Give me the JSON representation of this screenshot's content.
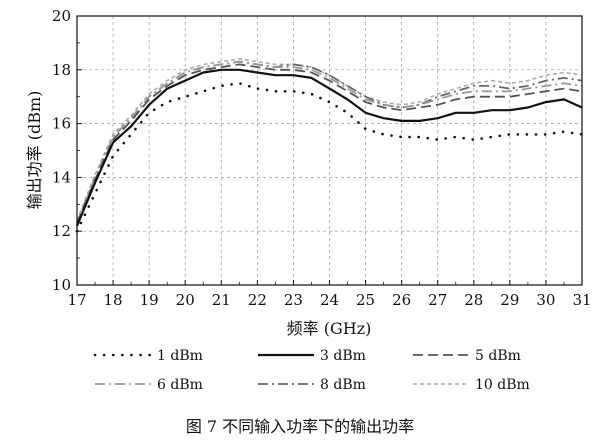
{
  "chart_data": {
    "type": "line",
    "xlabel": "频率 (GHz)",
    "ylabel": "输出功率 (dBm)",
    "xlim": [
      17,
      31
    ],
    "ylim": [
      10,
      20
    ],
    "x_ticks": [
      "17",
      "18",
      "19",
      "20",
      "21",
      "22",
      "23",
      "24",
      "25",
      "26",
      "27",
      "28",
      "29",
      "30",
      "31"
    ],
    "y_ticks": [
      "10",
      "12",
      "14",
      "16",
      "18",
      "20"
    ],
    "grid": true,
    "legend_position": "bottom",
    "caption": "图 7   不同输入功率下的输出功率",
    "x": [
      17,
      17.5,
      18,
      18.5,
      19,
      19.5,
      20,
      20.5,
      21,
      21.5,
      22,
      22.5,
      23,
      23.5,
      24,
      24.5,
      25,
      25.5,
      26,
      26.5,
      27,
      27.5,
      28,
      28.5,
      29,
      29.5,
      30,
      30.5,
      31
    ],
    "series": [
      {
        "name": "1 dBm",
        "style": "dotted",
        "color": "#111111",
        "values": [
          12.0,
          13.4,
          14.8,
          15.6,
          16.4,
          16.8,
          17.0,
          17.2,
          17.4,
          17.5,
          17.3,
          17.2,
          17.2,
          17.1,
          16.8,
          16.4,
          15.8,
          15.6,
          15.5,
          15.5,
          15.4,
          15.5,
          15.4,
          15.5,
          15.6,
          15.6,
          15.6,
          15.7,
          15.6
        ]
      },
      {
        "name": "3 dBm",
        "style": "solid",
        "color": "#111111",
        "values": [
          12.2,
          13.8,
          15.3,
          15.9,
          16.7,
          17.3,
          17.6,
          17.9,
          18.0,
          18.0,
          17.9,
          17.8,
          17.8,
          17.7,
          17.3,
          16.9,
          16.4,
          16.2,
          16.1,
          16.1,
          16.2,
          16.4,
          16.4,
          16.5,
          16.5,
          16.6,
          16.8,
          16.9,
          16.6
        ]
      },
      {
        "name": "5 dBm",
        "style": "dashed",
        "color": "#555555",
        "values": [
          12.3,
          13.9,
          15.4,
          16.1,
          16.9,
          17.4,
          17.8,
          18.0,
          18.1,
          18.2,
          18.1,
          18.0,
          18.0,
          17.9,
          17.6,
          17.2,
          16.8,
          16.6,
          16.5,
          16.6,
          16.7,
          16.9,
          17.0,
          17.0,
          17.0,
          17.1,
          17.2,
          17.3,
          17.2
        ]
      },
      {
        "name": "6 dBm",
        "style": "dashdot",
        "color": "#999999",
        "values": [
          12.3,
          14.0,
          15.5,
          16.2,
          17.0,
          17.5,
          17.9,
          18.1,
          18.2,
          18.3,
          18.2,
          18.1,
          18.1,
          18.0,
          17.7,
          17.3,
          16.9,
          16.7,
          16.6,
          16.7,
          16.9,
          17.1,
          17.2,
          17.2,
          17.2,
          17.3,
          17.4,
          17.5,
          17.4
        ]
      },
      {
        "name": "8 dBm",
        "style": "dashdot",
        "color": "#666666",
        "values": [
          12.3,
          14.0,
          15.5,
          16.2,
          17.0,
          17.5,
          17.9,
          18.1,
          18.2,
          18.3,
          18.2,
          18.1,
          18.2,
          18.1,
          17.8,
          17.4,
          17.0,
          16.7,
          16.6,
          16.7,
          17.0,
          17.2,
          17.4,
          17.4,
          17.3,
          17.4,
          17.6,
          17.7,
          17.6
        ]
      },
      {
        "name": "10 dBm",
        "style": "finedash",
        "color": "#aaaaaa",
        "values": [
          12.4,
          14.1,
          15.6,
          16.3,
          17.1,
          17.6,
          18.0,
          18.2,
          18.3,
          18.4,
          18.3,
          18.2,
          18.2,
          18.1,
          17.8,
          17.4,
          17.0,
          16.8,
          16.7,
          16.8,
          17.1,
          17.3,
          17.5,
          17.6,
          17.5,
          17.6,
          17.8,
          17.9,
          17.8
        ]
      }
    ]
  }
}
